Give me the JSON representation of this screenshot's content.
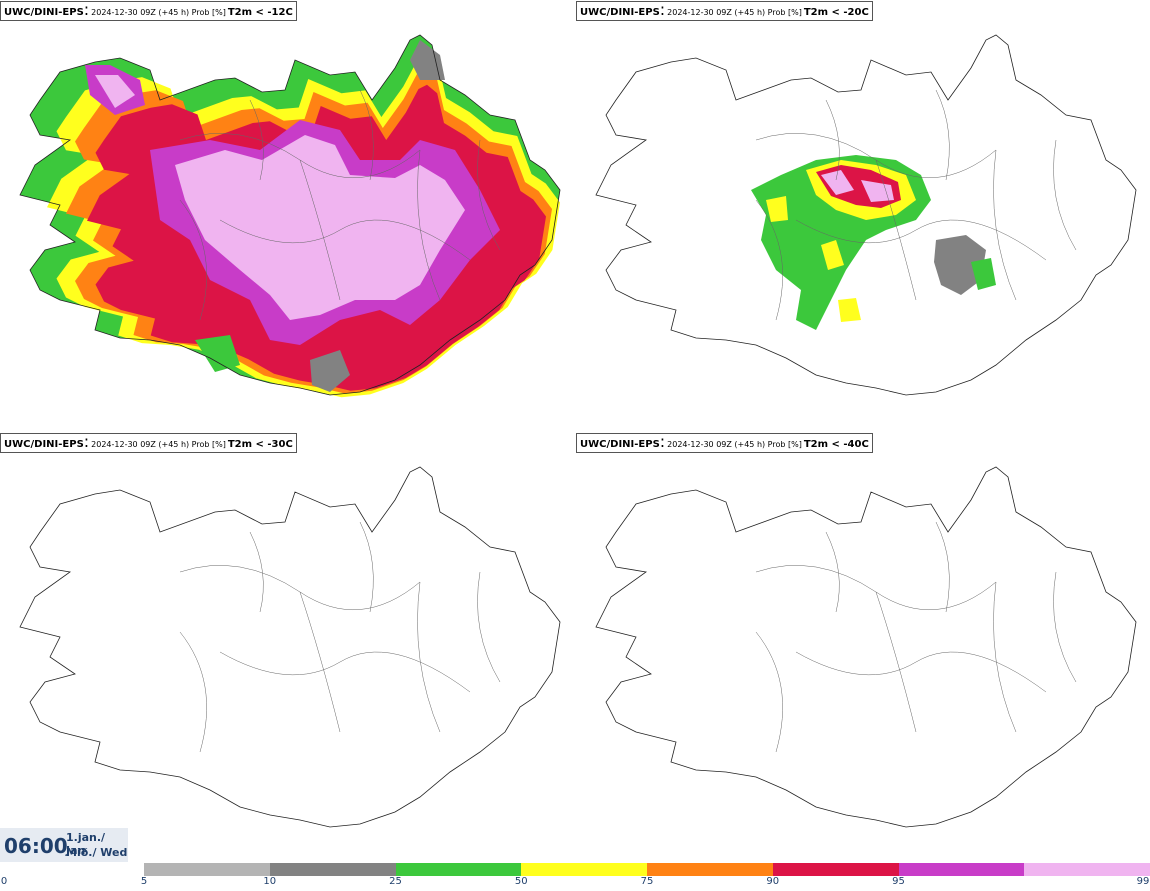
{
  "panels": [
    {
      "source": "UWC/DINI-EPS",
      "meta": "2024-12-30 09Z (+45 h) Prob [%]",
      "variable": "T2m < -12C"
    },
    {
      "source": "UWC/DINI-EPS",
      "meta": "2024-12-30 09Z (+45 h) Prob [%]",
      "variable": "T2m < -20C"
    },
    {
      "source": "UWC/DINI-EPS",
      "meta": "2024-12-30 09Z (+45 h) Prob [%]",
      "variable": "T2m < -30C"
    },
    {
      "source": "UWC/DINI-EPS",
      "meta": "2024-12-30 09Z (+45 h) Prob [%]",
      "variable": "T2m < -40C"
    }
  ],
  "time": {
    "hour": "06:00",
    "date_line1": "1.jan./ Jan",
    "date_line2": "Mið./ Wed"
  },
  "legend": {
    "ticks": [
      "0",
      "5",
      "10",
      "25",
      "50",
      "75",
      "90",
      "95",
      "99"
    ],
    "colors": [
      "#b4b4b4",
      "#828282",
      "#3cc83c",
      "#ffff1e",
      "#ff8214",
      "#dc1446",
      "#c83cc8",
      "#f0b4f0"
    ]
  }
}
